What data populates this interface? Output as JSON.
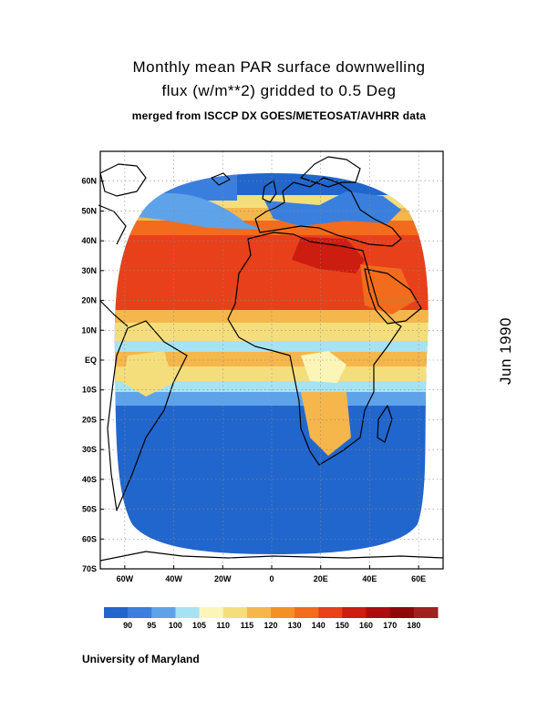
{
  "header": {
    "line1": "Monthly mean PAR surface downwelling",
    "line2": "flux (w/m**2) gridded to 0.5 Deg",
    "line3": "merged from ISCCP DX GOES/METEOSAT/AVHRR data"
  },
  "date_label": "Jun 1990",
  "footer": "University of Maryland",
  "map": {
    "lon_range": [
      -70,
      70
    ],
    "lat_range": [
      -70,
      70
    ],
    "lat_ticks": [
      {
        "v": 60,
        "label": "60N"
      },
      {
        "v": 50,
        "label": "50N"
      },
      {
        "v": 40,
        "label": "40N"
      },
      {
        "v": 30,
        "label": "30N"
      },
      {
        "v": 20,
        "label": "20N"
      },
      {
        "v": 10,
        "label": "10N"
      },
      {
        "v": 0,
        "label": "EQ"
      },
      {
        "v": -10,
        "label": "10S"
      },
      {
        "v": -20,
        "label": "20S"
      },
      {
        "v": -30,
        "label": "30S"
      },
      {
        "v": -40,
        "label": "40S"
      },
      {
        "v": -50,
        "label": "50S"
      },
      {
        "v": -60,
        "label": "60S"
      },
      {
        "v": -70,
        "label": "70S"
      }
    ],
    "lon_ticks": [
      {
        "v": -60,
        "label": "60W"
      },
      {
        "v": -40,
        "label": "40W"
      },
      {
        "v": -20,
        "label": "20W"
      },
      {
        "v": 0,
        "label": "0"
      },
      {
        "v": 20,
        "label": "20E"
      },
      {
        "v": 40,
        "label": "40E"
      },
      {
        "v": 60,
        "label": "60E"
      }
    ],
    "grid": true
  },
  "colorbar": {
    "labels": [
      "90",
      "95",
      "100",
      "105",
      "110",
      "115",
      "120",
      "130",
      "140",
      "150",
      "160",
      "170",
      "180"
    ],
    "colors": [
      "#2166cc",
      "#3a7fde",
      "#5ea3ea",
      "#a6e3f2",
      "#fbf6b8",
      "#f4de7c",
      "#f5b64b",
      "#f39124",
      "#f36b1c",
      "#e8401a",
      "#cd1c10",
      "#ad0d0d",
      "#8f0808",
      "#a12020"
    ]
  },
  "field_colors": {
    "deep_blue": "#2166cc",
    "blue": "#3a7fde",
    "light_blue": "#5ea3ea",
    "cyan": "#a6e3f2",
    "pale_yellow": "#fbf6b8",
    "yellow": "#f4de7c",
    "orange_light": "#f5b64b",
    "orange": "#f39124",
    "red_orange": "#f36b1c",
    "red": "#e8401a",
    "dark_red": "#cd1c10"
  }
}
